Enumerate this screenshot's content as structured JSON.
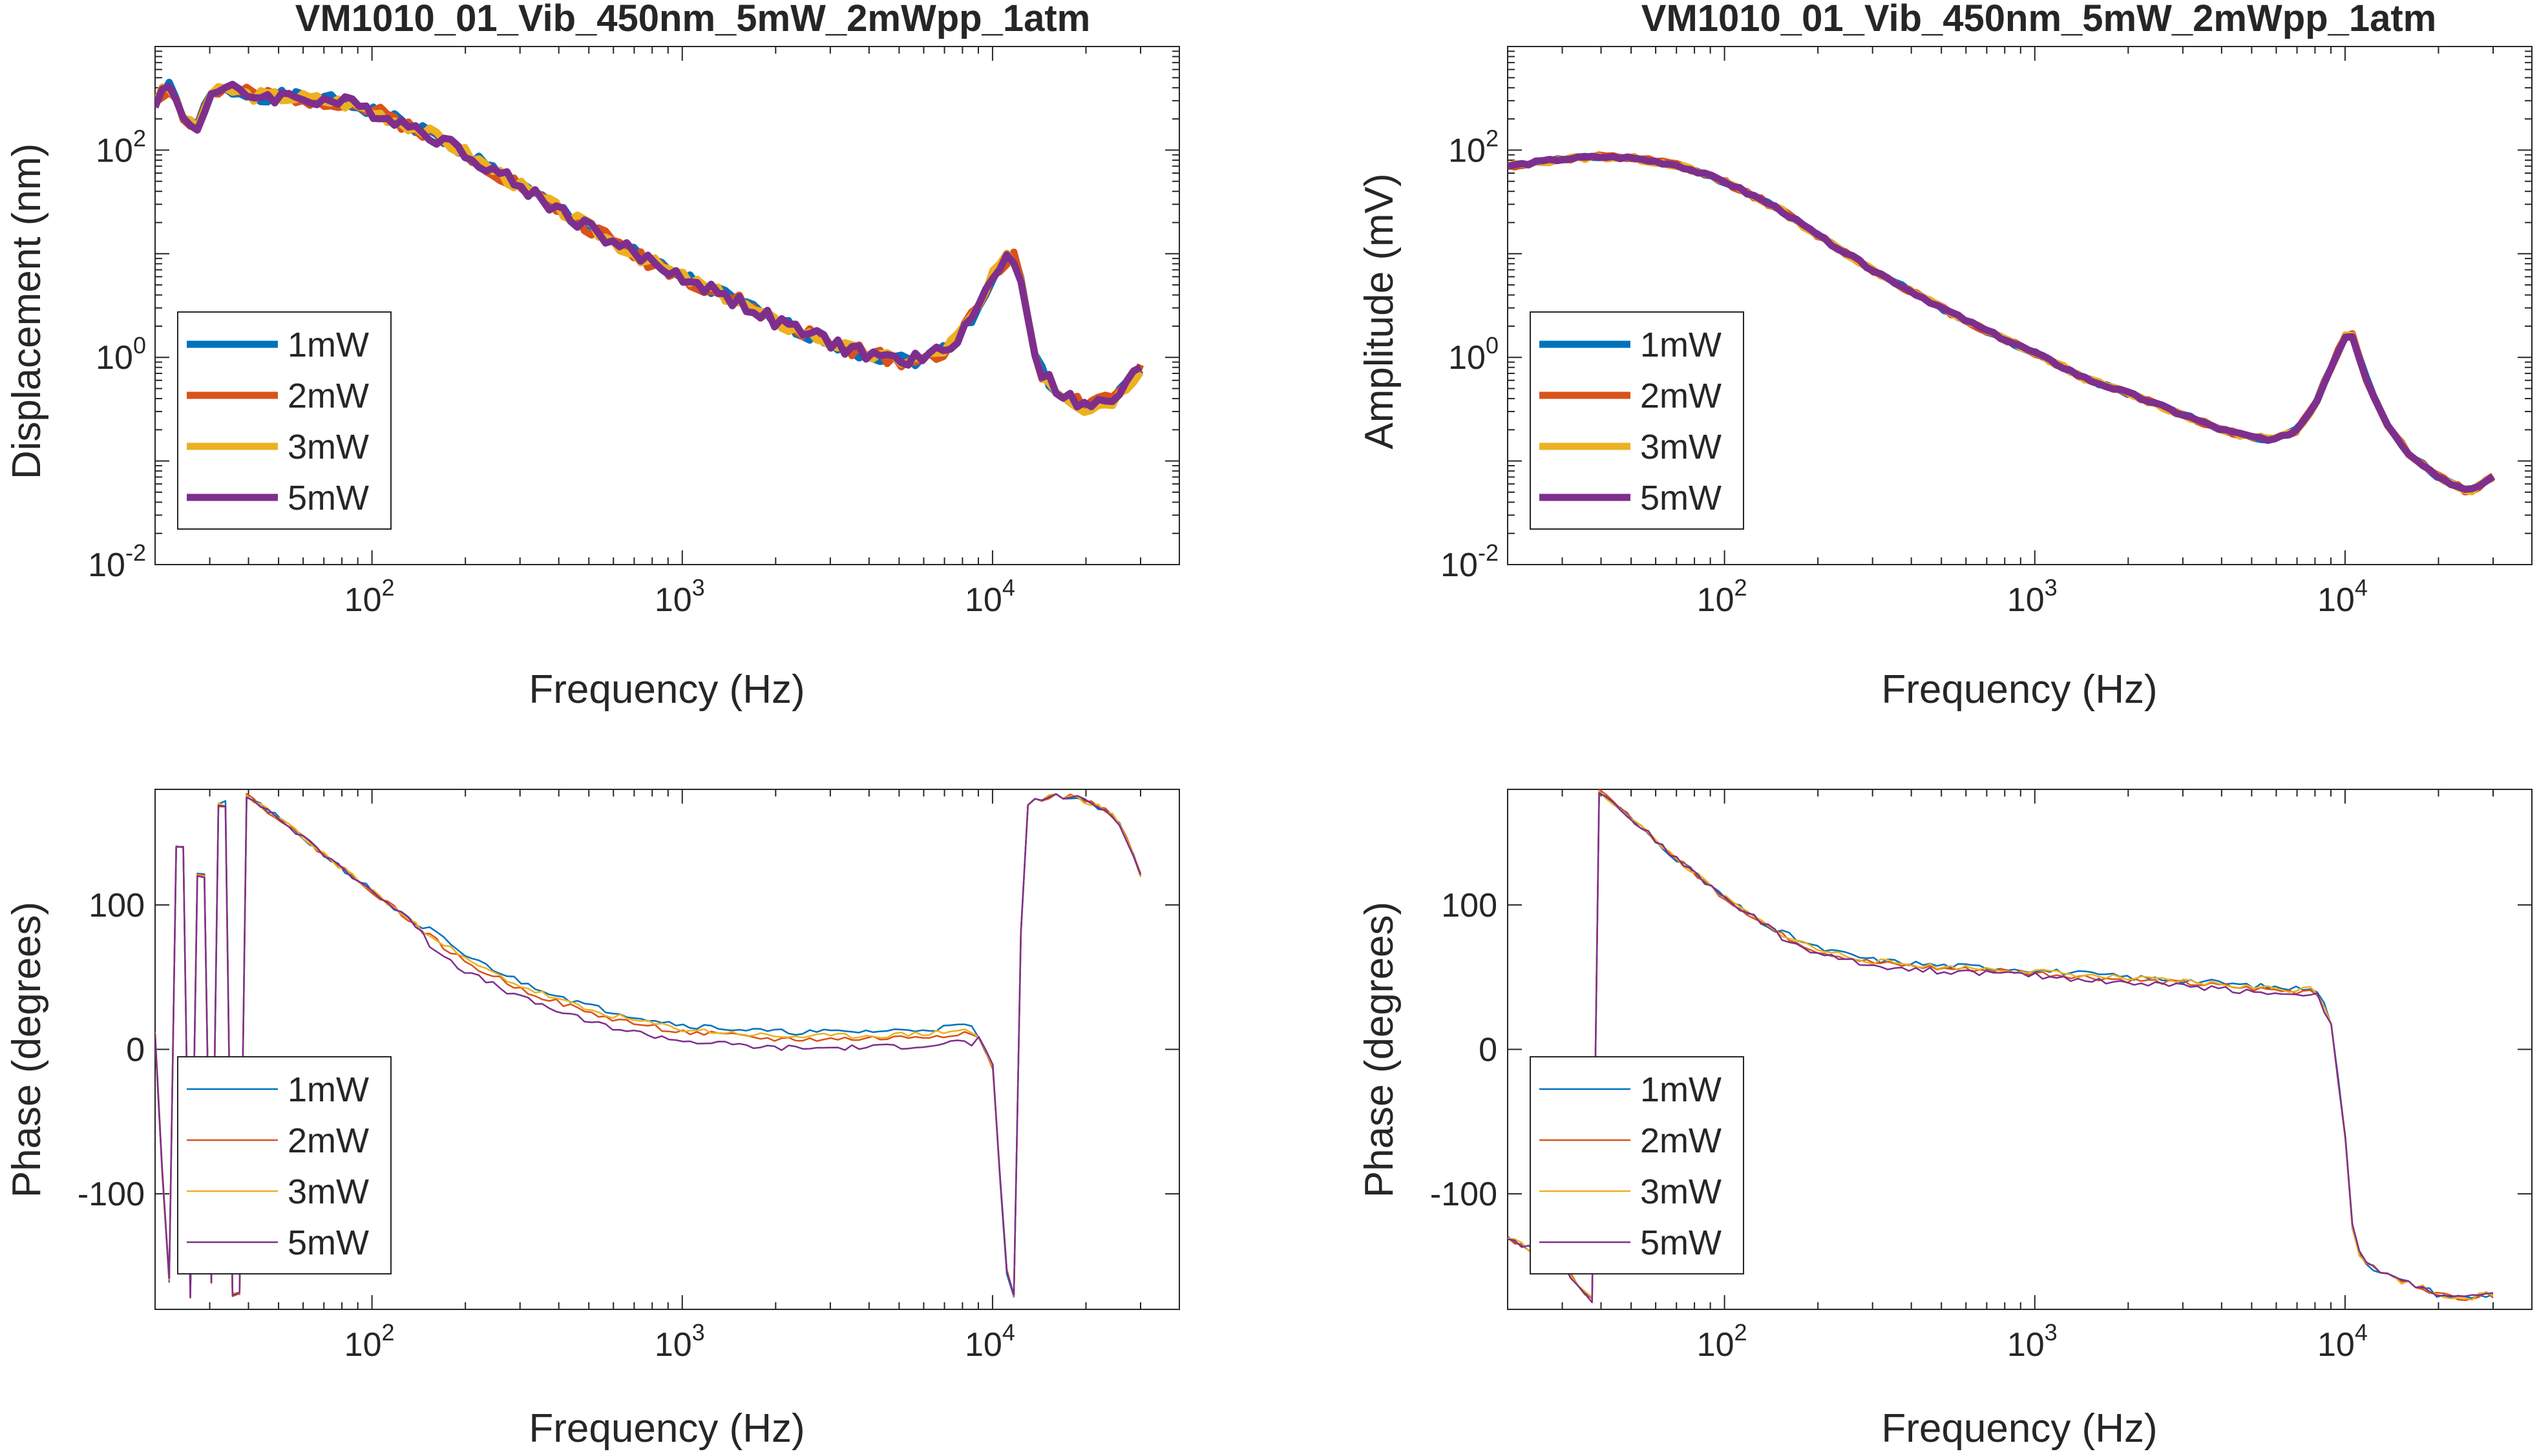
{
  "colors": {
    "1mW": "#0072BD",
    "2mW": "#D95319",
    "3mW": "#EDB120",
    "5mW": "#7E2F8E",
    "axis": "#262626",
    "background": "#ffffff"
  },
  "chart_data": [
    {
      "id": "top-left",
      "type": "line",
      "title": "VM1010_01_Vib_450nm_5mW_2mWpp_1atm",
      "xlabel": "Frequency (Hz)",
      "ylabel": "Displacement (nm)",
      "xscale": "log",
      "yscale": "log",
      "xlim": [
        20,
        40000
      ],
      "ylim": [
        0.01,
        1000
      ],
      "xticks": [
        {
          "base": "10",
          "exp": "2"
        },
        {
          "base": "10",
          "exp": "3"
        },
        {
          "base": "10",
          "exp": "4"
        }
      ],
      "yticks": [
        {
          "base": "10",
          "exp": "-2"
        },
        {
          "base": "10",
          "exp": "0"
        },
        {
          "base": "10",
          "exp": "2"
        }
      ],
      "legend": [
        "1mW",
        "2mW",
        "3mW",
        "5mW"
      ],
      "legend_position": "bottom-left",
      "line_style": "thick",
      "base": [
        [
          20,
          300
        ],
        [
          22,
          420
        ],
        [
          25,
          200
        ],
        [
          27,
          150
        ],
        [
          30,
          350
        ],
        [
          35,
          380
        ],
        [
          40,
          340
        ],
        [
          50,
          330
        ],
        [
          60,
          320
        ],
        [
          80,
          290
        ],
        [
          100,
          240
        ],
        [
          150,
          150
        ],
        [
          200,
          95
        ],
        [
          300,
          45
        ],
        [
          500,
          18
        ],
        [
          700,
          10
        ],
        [
          1000,
          6
        ],
        [
          1500,
          3.5
        ],
        [
          2000,
          2.2
        ],
        [
          3000,
          1.4
        ],
        [
          4000,
          1.05
        ],
        [
          5000,
          0.95
        ],
        [
          6000,
          0.95
        ],
        [
          7000,
          1.2
        ],
        [
          8000,
          1.8
        ],
        [
          9000,
          3
        ],
        [
          10000,
          6
        ],
        [
          11000,
          9
        ],
        [
          12000,
          9
        ],
        [
          13000,
          2.5
        ],
        [
          14000,
          0.8
        ],
        [
          16000,
          0.5
        ],
        [
          20000,
          0.32
        ],
        [
          25000,
          0.4
        ],
        [
          30000,
          0.8
        ]
      ],
      "series": [
        {
          "name": "1mW",
          "jitter": 0.06
        },
        {
          "name": "2mW",
          "jitter": 0.07
        },
        {
          "name": "3mW",
          "jitter": 0.06
        },
        {
          "name": "5mW",
          "jitter": 0.07
        }
      ]
    },
    {
      "id": "top-right",
      "type": "line",
      "title": "VM1010_01_Vib_450nm_5mW_2mWpp_1atm",
      "xlabel": "Frequency (Hz)",
      "ylabel": "Amplitude (mV)",
      "xscale": "log",
      "yscale": "log",
      "xlim": [
        20,
        40000
      ],
      "ylim": [
        0.01,
        1000
      ],
      "xticks": [
        {
          "base": "10",
          "exp": "2"
        },
        {
          "base": "10",
          "exp": "3"
        },
        {
          "base": "10",
          "exp": "4"
        }
      ],
      "yticks": [
        {
          "base": "10",
          "exp": "-2"
        },
        {
          "base": "10",
          "exp": "0"
        },
        {
          "base": "10",
          "exp": "2"
        }
      ],
      "legend": [
        "1mW",
        "2mW",
        "3mW",
        "5mW"
      ],
      "legend_position": "bottom-left",
      "line_style": "thick",
      "base": [
        [
          20,
          70
        ],
        [
          30,
          82
        ],
        [
          40,
          86
        ],
        [
          50,
          84
        ],
        [
          70,
          72
        ],
        [
          100,
          50
        ],
        [
          150,
          27
        ],
        [
          200,
          15
        ],
        [
          300,
          7
        ],
        [
          500,
          3
        ],
        [
          700,
          1.8
        ],
        [
          1000,
          1.1
        ],
        [
          1500,
          0.6
        ],
        [
          2000,
          0.45
        ],
        [
          3000,
          0.28
        ],
        [
          4000,
          0.2
        ],
        [
          5000,
          0.17
        ],
        [
          6000,
          0.16
        ],
        [
          7000,
          0.2
        ],
        [
          8000,
          0.35
        ],
        [
          9000,
          0.8
        ],
        [
          10000,
          1.6
        ],
        [
          10500,
          1.7
        ],
        [
          11000,
          1.1
        ],
        [
          12000,
          0.5
        ],
        [
          14000,
          0.2
        ],
        [
          16000,
          0.12
        ],
        [
          20000,
          0.07
        ],
        [
          25000,
          0.05
        ],
        [
          30000,
          0.07
        ]
      ],
      "series": [
        {
          "name": "1mW",
          "jitter": 0.015
        },
        {
          "name": "2mW",
          "jitter": 0.02
        },
        {
          "name": "3mW",
          "jitter": 0.02
        },
        {
          "name": "5mW",
          "jitter": 0.015
        }
      ]
    },
    {
      "id": "bottom-left",
      "type": "line",
      "title": "",
      "xlabel": "Frequency (Hz)",
      "ylabel": "Phase (degrees)",
      "xscale": "log",
      "yscale": "linear",
      "xlim": [
        20,
        40000
      ],
      "ylim": [
        -180,
        180
      ],
      "xticks": [
        {
          "base": "10",
          "exp": "2"
        },
        {
          "base": "10",
          "exp": "3"
        },
        {
          "base": "10",
          "exp": "4"
        }
      ],
      "yticks": [
        {
          "value": -100,
          "label": "-100"
        },
        {
          "value": 0,
          "label": "0"
        },
        {
          "value": 100,
          "label": "100"
        }
      ],
      "legend": [
        "1mW",
        "2mW",
        "3mW",
        "5mW"
      ],
      "legend_position": "bottom-left",
      "line_style": "thin",
      "base": [
        [
          20,
          10
        ],
        [
          22,
          -160
        ],
        [
          24,
          140
        ],
        [
          26,
          -170
        ],
        [
          28,
          120
        ],
        [
          30,
          -160
        ],
        [
          33,
          170
        ],
        [
          36,
          -170
        ],
        [
          40,
          175
        ],
        [
          50,
          160
        ],
        [
          70,
          135
        ],
        [
          100,
          110
        ],
        [
          150,
          80
        ],
        [
          200,
          60
        ],
        [
          300,
          42
        ],
        [
          500,
          25
        ],
        [
          700,
          18
        ],
        [
          1000,
          12
        ],
        [
          1500,
          9
        ],
        [
          2000,
          7
        ],
        [
          3000,
          7
        ],
        [
          5000,
          8
        ],
        [
          7000,
          10
        ],
        [
          8000,
          12
        ],
        [
          9000,
          8
        ],
        [
          10000,
          -10
        ],
        [
          10500,
          -80
        ],
        [
          11000,
          -150
        ],
        [
          11500,
          -165
        ],
        [
          12000,
          -175
        ],
        [
          12500,
          80
        ],
        [
          13000,
          170
        ],
        [
          15000,
          175
        ],
        [
          18000,
          175
        ],
        [
          20000,
          172
        ],
        [
          22000,
          168
        ],
        [
          25000,
          160
        ],
        [
          28000,
          140
        ],
        [
          30000,
          120
        ]
      ],
      "series": [
        {
          "name": "1mW",
          "offset": 5,
          "jitter": 2
        },
        {
          "name": "2mW",
          "offset": 0,
          "jitter": 2
        },
        {
          "name": "3mW",
          "offset": 2,
          "jitter": 2
        },
        {
          "name": "5mW",
          "offset": -6,
          "jitter": 2
        }
      ]
    },
    {
      "id": "bottom-right",
      "type": "line",
      "title": "",
      "xlabel": "Frequency (Hz)",
      "ylabel": "Phase (degrees)",
      "xscale": "log",
      "yscale": "linear",
      "xlim": [
        20,
        40000
      ],
      "ylim": [
        -180,
        180
      ],
      "xticks": [
        {
          "base": "10",
          "exp": "2"
        },
        {
          "base": "10",
          "exp": "3"
        },
        {
          "base": "10",
          "exp": "4"
        }
      ],
      "yticks": [
        {
          "value": -100,
          "label": "-100"
        },
        {
          "value": 0,
          "label": "0"
        },
        {
          "value": 100,
          "label": "100"
        }
      ],
      "legend": [
        "1mW",
        "2mW",
        "3mW",
        "5mW"
      ],
      "legend_position": "bottom-left",
      "line_style": "thin",
      "base": [
        [
          20,
          -130
        ],
        [
          30,
          -150
        ],
        [
          38,
          -175
        ],
        [
          40,
          178
        ],
        [
          50,
          160
        ],
        [
          70,
          132
        ],
        [
          100,
          105
        ],
        [
          150,
          80
        ],
        [
          200,
          68
        ],
        [
          300,
          60
        ],
        [
          500,
          56
        ],
        [
          700,
          55
        ],
        [
          1000,
          53
        ],
        [
          1500,
          50
        ],
        [
          2000,
          48
        ],
        [
          3000,
          46
        ],
        [
          4000,
          44
        ],
        [
          5000,
          42
        ],
        [
          6000,
          41
        ],
        [
          7000,
          40
        ],
        [
          8000,
          42
        ],
        [
          9000,
          20
        ],
        [
          10000,
          -60
        ],
        [
          10500,
          -120
        ],
        [
          11000,
          -140
        ],
        [
          12000,
          -150
        ],
        [
          15000,
          -160
        ],
        [
          18000,
          -165
        ],
        [
          20000,
          -170
        ],
        [
          25000,
          -172
        ],
        [
          28000,
          -170
        ]
      ],
      "series": [
        {
          "name": "1mW",
          "offset": 2,
          "jitter": 2
        },
        {
          "name": "2mW",
          "offset": 0,
          "jitter": 2
        },
        {
          "name": "3mW",
          "offset": 1,
          "jitter": 2
        },
        {
          "name": "5mW",
          "offset": -2,
          "jitter": 2
        }
      ]
    }
  ]
}
